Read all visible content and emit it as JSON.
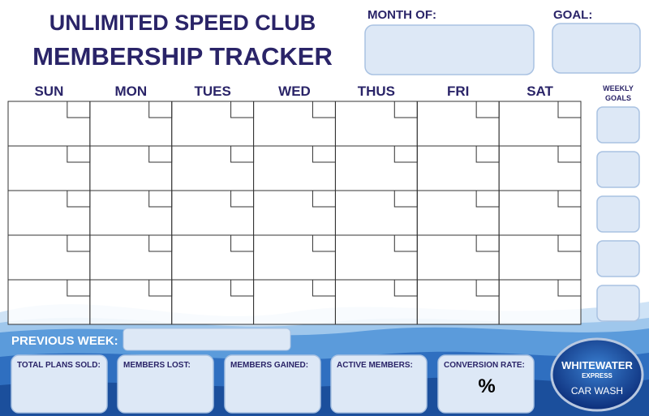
{
  "header": {
    "title_line1": "UNLIMITED SPEED CLUB",
    "title_line2": "MEMBERSHIP TRACKER"
  },
  "fields": {
    "month_of": "MONTH OF:",
    "goal": "GOAL:"
  },
  "calendar": {
    "days": [
      "SUN",
      "MON",
      "TUES",
      "WED",
      "THUS",
      "FRI",
      "SAT"
    ],
    "weekly_goals": [
      "WEEKLY",
      "GOALS"
    ]
  },
  "previous_week": "PREVIOUS WEEK:",
  "summary": [
    "TOTAL PLANS SOLD:",
    "MEMBERS LOST:",
    "MEMBERS GAINED:",
    "ACTIVE MEMBERS:",
    "CONVERSION RATE:"
  ],
  "conversion_symbol": "%",
  "logo": {
    "line1": "WHITEWATER",
    "line2": "EXPRESS",
    "line3": "CAR WASH"
  }
}
